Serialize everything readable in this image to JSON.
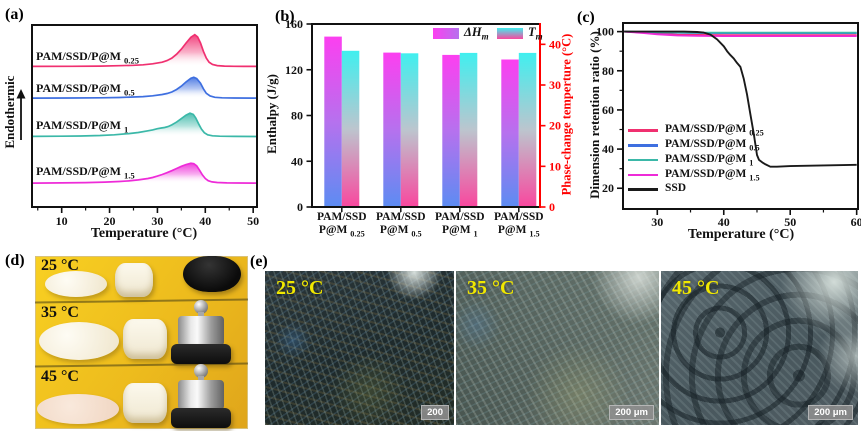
{
  "panel_labels": {
    "a": "(a)",
    "b": "(b)",
    "c": "(c)",
    "d": "(d)",
    "e": "(e)"
  },
  "colors": {
    "axis_black": "#111111",
    "axis_red": "#FF0000",
    "micro_label_yellow": "#F1E800",
    "photo_bg_yellow": "#EFBE1D",
    "curve_pink": "#F03070",
    "curve_blue": "#3E6FE0",
    "curve_teal": "#3BB8A8",
    "curve_magenta": "#EE2BD8",
    "curve_black": "#1A1A1A"
  },
  "chart_data": [
    {
      "id": "panel-a",
      "type": "line",
      "ylabel": "Endothermic",
      "xlabel": "Temperature (°C)",
      "x_ticks": [
        10,
        20,
        30,
        40,
        50
      ],
      "x_minor_ticks": [
        5,
        15,
        25,
        35,
        45
      ],
      "xlim": [
        3.8,
        50.8
      ],
      "curves": [
        {
          "label_base": "PAM/SSD/P@M",
          "label_sub": "0.25",
          "color": "#F03070",
          "peak_temp_c": 37.8,
          "baseline_y": 66.7,
          "peak_height": 32,
          "points": [
            [
              4,
              0.01
            ],
            [
              12,
              0.012
            ],
            [
              18,
              0.02
            ],
            [
              22,
              0.03
            ],
            [
              25,
              0.045
            ],
            [
              27,
              0.06
            ],
            [
              29,
              0.09
            ],
            [
              31,
              0.14
            ],
            [
              32,
              0.19
            ],
            [
              33,
              0.27
            ],
            [
              34,
              0.39
            ],
            [
              35,
              0.55
            ],
            [
              36,
              0.74
            ],
            [
              37,
              0.92
            ],
            [
              37.8,
              1
            ],
            [
              38.4,
              0.93
            ],
            [
              39,
              0.74
            ],
            [
              39.6,
              0.48
            ],
            [
              40.2,
              0.27
            ],
            [
              40.8,
              0.14
            ],
            [
              41.5,
              0.07
            ],
            [
              42.5,
              0.035
            ],
            [
              44,
              0.02
            ],
            [
              46,
              0.012
            ],
            [
              48,
              0.01
            ],
            [
              50.8,
              0.008
            ]
          ]
        },
        {
          "label_base": "PAM/SSD/P@M",
          "label_sub": "0.5",
          "color": "#3E6FE0",
          "peak_temp_c": 37.6,
          "baseline_y": 98.3,
          "peak_height": 21,
          "points": [
            [
              4,
              0.01
            ],
            [
              12,
              0.015
            ],
            [
              18,
              0.025
            ],
            [
              22,
              0.04
            ],
            [
              25,
              0.06
            ],
            [
              27,
              0.08
            ],
            [
              29,
              0.12
            ],
            [
              31,
              0.18
            ],
            [
              32,
              0.23
            ],
            [
              33,
              0.3
            ],
            [
              34,
              0.42
            ],
            [
              35,
              0.58
            ],
            [
              36,
              0.78
            ],
            [
              37,
              0.95
            ],
            [
              37.6,
              1
            ],
            [
              38.2,
              0.94
            ],
            [
              39,
              0.72
            ],
            [
              39.6,
              0.45
            ],
            [
              40.2,
              0.24
            ],
            [
              41,
              0.11
            ],
            [
              42,
              0.05
            ],
            [
              43.5,
              0.025
            ],
            [
              46,
              0.013
            ],
            [
              50.8,
              0.01
            ]
          ]
        },
        {
          "label_base": "PAM/SSD/P@M",
          "label_sub": "1",
          "color": "#3BB8A8",
          "peak_temp_c": 36.8,
          "baseline_y": 136.7,
          "peak_height": 23.5,
          "points": [
            [
              4,
              0.012
            ],
            [
              10,
              0.02
            ],
            [
              14,
              0.03
            ],
            [
              18,
              0.05
            ],
            [
              21,
              0.08
            ],
            [
              24,
              0.13
            ],
            [
              26,
              0.18
            ],
            [
              28,
              0.25
            ],
            [
              29,
              0.29
            ],
            [
              30,
              0.34
            ],
            [
              30.8,
              0.37
            ],
            [
              31.5,
              0.39
            ],
            [
              32.2,
              0.43
            ],
            [
              33,
              0.5
            ],
            [
              34,
              0.62
            ],
            [
              35,
              0.77
            ],
            [
              36,
              0.92
            ],
            [
              36.8,
              1
            ],
            [
              37.5,
              0.95
            ],
            [
              38,
              0.8
            ],
            [
              38.6,
              0.55
            ],
            [
              39.2,
              0.32
            ],
            [
              39.8,
              0.17
            ],
            [
              40.5,
              0.08
            ],
            [
              41.5,
              0.04
            ],
            [
              43,
              0.02
            ],
            [
              46,
              0.012
            ],
            [
              50.8,
              0.01
            ]
          ]
        },
        {
          "label_base": "PAM/SSD/P@M",
          "label_sub": "1.5",
          "color": "#EE2BD8",
          "peak_temp_c": 37,
          "baseline_y": 183.3,
          "peak_height": 20,
          "points": [
            [
              4,
              0.012
            ],
            [
              10,
              0.02
            ],
            [
              15,
              0.035
            ],
            [
              19,
              0.06
            ],
            [
              22,
              0.09
            ],
            [
              24,
              0.12
            ],
            [
              26,
              0.17
            ],
            [
              28,
              0.24
            ],
            [
              29,
              0.29
            ],
            [
              30,
              0.36
            ],
            [
              31,
              0.44
            ],
            [
              32,
              0.53
            ],
            [
              33,
              0.63
            ],
            [
              34,
              0.74
            ],
            [
              35,
              0.85
            ],
            [
              36,
              0.94
            ],
            [
              37,
              1
            ],
            [
              37.6,
              0.98
            ],
            [
              38.2,
              0.87
            ],
            [
              38.8,
              0.65
            ],
            [
              39.4,
              0.42
            ],
            [
              40,
              0.24
            ],
            [
              40.6,
              0.13
            ],
            [
              41.4,
              0.07
            ],
            [
              42.5,
              0.04
            ],
            [
              44.5,
              0.02
            ],
            [
              47,
              0.013
            ],
            [
              50.8,
              0.01
            ]
          ]
        }
      ]
    },
    {
      "id": "panel-b",
      "type": "bar",
      "ylabel_left": "Enthalpy (J/g)",
      "ylabel_right": "Phase-change temperture (°C)",
      "left_ticks": [
        0,
        40,
        80,
        120,
        160
      ],
      "right_ticks": [
        0,
        10,
        20,
        30,
        40
      ],
      "ylim_left": [
        0,
        160
      ],
      "ylim_right": [
        0,
        45
      ],
      "categories": [
        {
          "line1": "PAM/SSD",
          "line2_base": "P@M",
          "line2_sub": "0.25"
        },
        {
          "line1": "PAM/SSD",
          "line2_base": "P@M",
          "line2_sub": "0.5"
        },
        {
          "line1": "PAM/SSD",
          "line2_base": "P@M",
          "line2_sub": "1"
        },
        {
          "line1": "PAM/SSD",
          "line2_base": "P@M",
          "line2_sub": "1.5"
        }
      ],
      "series": [
        {
          "name_base": "ΔH",
          "name_sub": "m",
          "axis": "left",
          "unit": "J/g",
          "values": [
            149,
            135,
            133,
            129
          ],
          "gradient": [
            "#FC3FF0",
            "#B671EE",
            "#5C8CF2"
          ]
        },
        {
          "name_base": "T",
          "name_sub": "m",
          "axis": "right",
          "unit": "°C",
          "values": [
            38.4,
            37.8,
            37.9,
            37.9
          ],
          "gradient": [
            "#40EFEF",
            "#BCC5CE",
            "#F9479E"
          ]
        }
      ]
    },
    {
      "id": "panel-c",
      "type": "line",
      "ylabel": "Dimension retention ratio (%)",
      "xlabel": "Temperature (°C)",
      "x_ticks": [
        30,
        40,
        50,
        60
      ],
      "x_minor_ticks": [
        35,
        45,
        55
      ],
      "y_ticks": [
        20,
        40,
        60,
        80,
        100
      ],
      "y_minor_ticks": [
        30,
        50,
        70,
        90
      ],
      "xlim": [
        24.84,
        60.2
      ],
      "ylim": [
        9.4,
        104.4
      ],
      "series": [
        {
          "name_base": "PAM/SSD/P@M",
          "name_sub": "0.25",
          "color": "#F03070",
          "points": [
            [
              25,
              100
            ],
            [
              28,
              99.5
            ],
            [
              30,
              99
            ],
            [
              33,
              98.5
            ],
            [
              36,
              98.3
            ],
            [
              40,
              98.2
            ],
            [
              50,
              98.2
            ],
            [
              60,
              98.2
            ]
          ]
        },
        {
          "name_base": "PAM/SSD/P@M",
          "name_sub": "0.5",
          "color": "#3E6FE0",
          "points": [
            [
              25,
              100
            ],
            [
              30,
              99.6
            ],
            [
              35,
              99.3
            ],
            [
              40,
              99.2
            ],
            [
              60,
              99.2
            ]
          ]
        },
        {
          "name_base": "PAM/SSD/P@M",
          "name_sub": "1",
          "color": "#3BB8A8",
          "points": [
            [
              25,
              100
            ],
            [
              30,
              99.7
            ],
            [
              35,
              99.5
            ],
            [
              60,
              99.5
            ]
          ]
        },
        {
          "name_base": "PAM/SSD/P@M",
          "name_sub": "1.5",
          "color": "#EE2BD8",
          "points": [
            [
              25,
              100
            ],
            [
              28,
              99.2
            ],
            [
              30,
              98.6
            ],
            [
              33,
              98
            ],
            [
              36,
              97.8
            ],
            [
              40,
              97.7
            ],
            [
              60,
              97.7
            ]
          ]
        },
        {
          "name_base": "SSD",
          "name_sub": "",
          "color": "#1A1A1A",
          "points": [
            [
              25,
              100
            ],
            [
              30,
              100
            ],
            [
              34,
              100
            ],
            [
              36,
              99.8
            ],
            [
              37,
              99.5
            ],
            [
              38,
              98.5
            ],
            [
              39,
              96
            ],
            [
              40,
              92.5
            ],
            [
              40.5,
              90
            ],
            [
              41,
              88
            ],
            [
              41.5,
              86.3
            ],
            [
              42,
              84
            ],
            [
              42.5,
              82
            ],
            [
              43,
              76
            ],
            [
              43.5,
              68
            ],
            [
              44,
              58
            ],
            [
              44.5,
              48
            ],
            [
              45,
              37
            ],
            [
              45.3,
              34.5
            ],
            [
              45.8,
              33.2
            ],
            [
              46.3,
              32.2
            ],
            [
              47,
              31
            ],
            [
              48,
              31
            ],
            [
              50,
              31.3
            ],
            [
              53,
              31.5
            ],
            [
              56,
              31.7
            ],
            [
              60,
              32
            ]
          ]
        }
      ]
    }
  ],
  "panel_d": {
    "rows": [
      {
        "label": "25 °C"
      },
      {
        "label": "35 °C"
      },
      {
        "label": "45 °C"
      }
    ]
  },
  "panel_e": {
    "images": [
      {
        "label": "25 °C",
        "scale_label": "200"
      },
      {
        "label": "35 °C",
        "scale_label": "200 μm"
      },
      {
        "label": "45 °C",
        "scale_label": "200 μm"
      }
    ]
  }
}
